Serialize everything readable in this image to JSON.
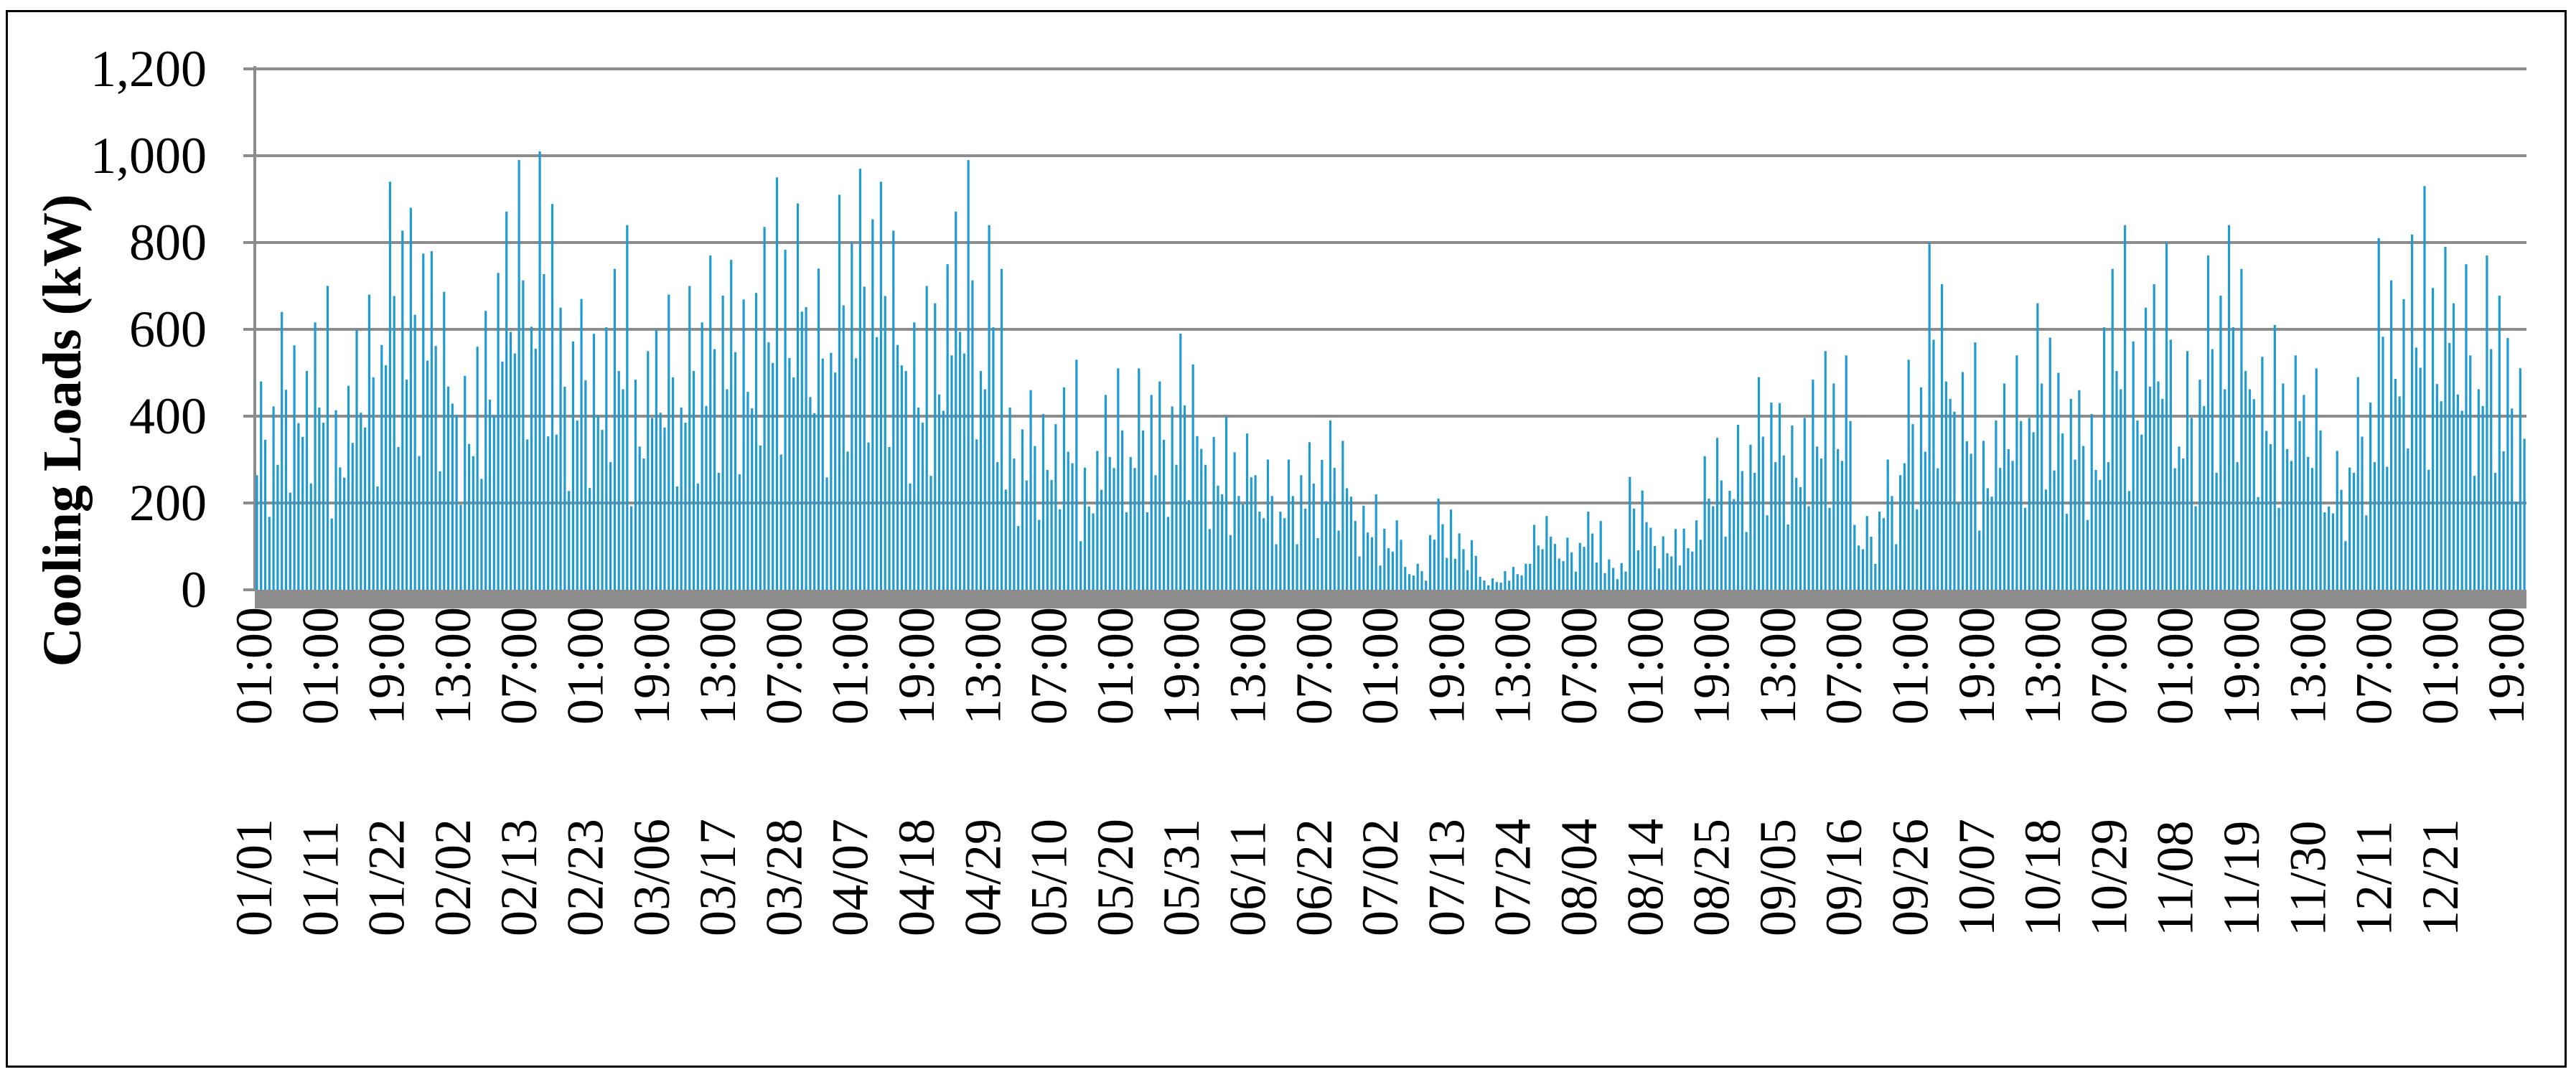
{
  "chart_data": {
    "type": "bar",
    "title": "",
    "xlabel": "",
    "ylabel": "Cooling Loads (kW)",
    "ylim": [
      0,
      1200
    ],
    "yticks": [
      "0",
      "200",
      "400",
      "600",
      "800",
      "1,000",
      "1,200"
    ],
    "ytick_values": [
      0,
      200,
      400,
      600,
      800,
      1000,
      1200
    ],
    "grid": "horizontal",
    "legend": "none",
    "bar_color": "#1f9bd1",
    "grid_color": "#8c8c8c",
    "axis_band_color": "#8c8c8c",
    "x_tick_labels": [
      {
        "time": "01:00",
        "date": "01/01"
      },
      {
        "time": "01:00",
        "date": "01/11"
      },
      {
        "time": "19:00",
        "date": "01/22"
      },
      {
        "time": "13:00",
        "date": "02/02"
      },
      {
        "time": "07:00",
        "date": "02/13"
      },
      {
        "time": "01:00",
        "date": "02/23"
      },
      {
        "time": "19:00",
        "date": "03/06"
      },
      {
        "time": "13:00",
        "date": "03/17"
      },
      {
        "time": "07:00",
        "date": "03/28"
      },
      {
        "time": "01:00",
        "date": "04/07"
      },
      {
        "time": "19:00",
        "date": "04/18"
      },
      {
        "time": "13:00",
        "date": "04/29"
      },
      {
        "time": "07:00",
        "date": "05/10"
      },
      {
        "time": "01:00",
        "date": "05/20"
      },
      {
        "time": "19:00",
        "date": "05/31"
      },
      {
        "time": "13:00",
        "date": "06/11"
      },
      {
        "time": "07:00",
        "date": "06/22"
      },
      {
        "time": "01:00",
        "date": "07/02"
      },
      {
        "time": "19:00",
        "date": "07/13"
      },
      {
        "time": "13:00",
        "date": "07/24"
      },
      {
        "time": "07:00",
        "date": "08/04"
      },
      {
        "time": "01:00",
        "date": "08/14"
      },
      {
        "time": "19:00",
        "date": "08/25"
      },
      {
        "time": "13:00",
        "date": "09/05"
      },
      {
        "time": "07:00",
        "date": "09/16"
      },
      {
        "time": "01:00",
        "date": "09/26"
      },
      {
        "time": "19:00",
        "date": "10/07"
      },
      {
        "time": "13:00",
        "date": "10/18"
      },
      {
        "time": "07:00",
        "date": "10/29"
      },
      {
        "time": "01:00",
        "date": "11/08"
      },
      {
        "time": "19:00",
        "date": "11/19"
      },
      {
        "time": "13:00",
        "date": "11/30"
      },
      {
        "time": "07:00",
        "date": "12/11"
      },
      {
        "time": "01:00",
        "date": "12/21"
      },
      {
        "time": "19:00",
        "date": ""
      }
    ],
    "series": [
      {
        "values": [
          480,
          640,
          700,
          470,
          680,
          940,
          880,
          780,
          560,
          730,
          990,
          1010,
          650,
          670,
          840,
          550,
          680,
          700,
          770,
          760,
          950,
          890,
          740,
          910,
          970,
          940,
          700,
          750,
          990,
          840,
          420,
          460,
          530,
          320,
          510,
          510,
          480,
          590,
          400,
          360,
          300,
          300,
          340,
          390,
          220,
          160,
          60,
          210,
          130,
          30,
          60,
          170,
          120,
          180,
          70,
          260,
          140,
          160,
          350,
          380,
          490,
          430,
          550,
          540,
          170,
          300,
          530,
          800,
          570,
          390,
          540,
          660,
          500,
          460,
          840,
          650,
          800,
          550,
          770,
          840,
          610,
          540,
          510,
          320,
          490,
          810,
          930,
          790,
          750,
          770,
          580
        ]
      }
    ]
  }
}
